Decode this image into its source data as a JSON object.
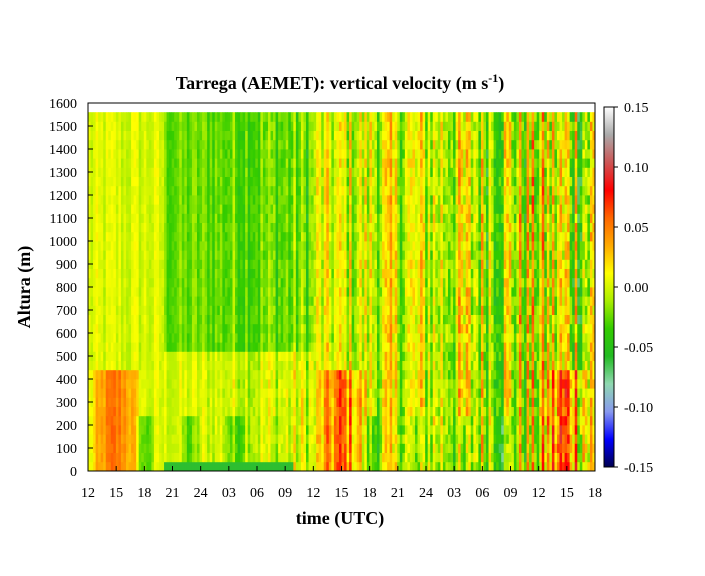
{
  "chart_data": {
    "type": "heatmap",
    "title": "Tarrega (AEMET): vertical velocity (m s",
    "title_sup": "-1",
    "title_end": ")",
    "xlabel": "time (UTC)",
    "ylabel": "Altura (m)",
    "x_ticks": [
      "12",
      "15",
      "18",
      "21",
      "24",
      "03",
      "06",
      "09",
      "12",
      "15",
      "18",
      "21",
      "24",
      "03",
      "06",
      "09",
      "12",
      "15",
      "18"
    ],
    "xlim": [
      0,
      54
    ],
    "y_ticks": [
      0,
      100,
      200,
      300,
      400,
      500,
      600,
      700,
      800,
      900,
      1000,
      1100,
      1200,
      1300,
      1400,
      1500,
      1600
    ],
    "ylim": [
      0,
      1600
    ],
    "data_top": 1560,
    "colorbar": {
      "ticks": [
        "0.15",
        "0.10",
        "0.05",
        "0.00",
        "-0.05",
        "-0.10",
        "-0.15"
      ],
      "range": [
        -0.15,
        0.15
      ],
      "colors": [
        "#000050",
        "#0000ff",
        "#8899ee",
        "#8fd8b0",
        "#22bb22",
        "#33cc00",
        "#aaee00",
        "#ffff00",
        "#ffaa00",
        "#ff6600",
        "#ff0000",
        "#cc5555",
        "#aaaaaa",
        "#ffffff"
      ]
    },
    "grid": false
  }
}
